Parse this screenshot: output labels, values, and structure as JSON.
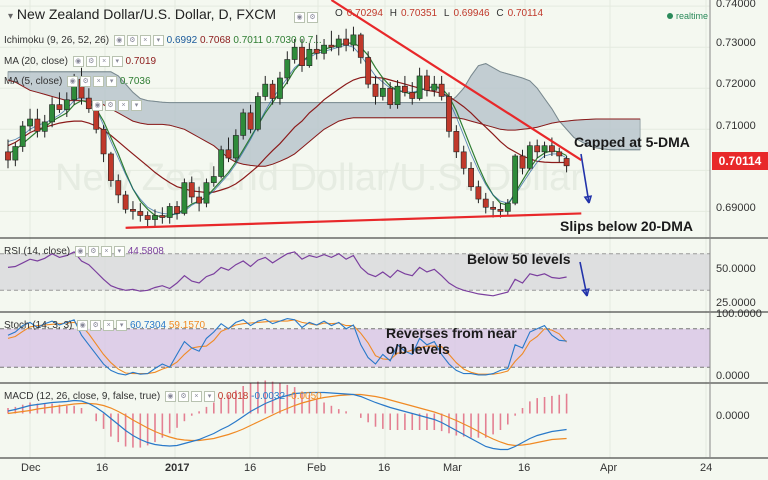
{
  "header": {
    "title": "New Zealand Dollar/U.S. Dollar, D, FXCM",
    "ohlc": {
      "o_label": "O",
      "o": "0.70294",
      "h_label": "H",
      "h": "0.70351",
      "l_label": "L",
      "l": "0.69946",
      "c_label": "C",
      "c": "0.70114"
    },
    "realtime": "realtime"
  },
  "indicators": {
    "ichimoku": {
      "label": "Ichimoku (9, 26, 52, 26)",
      "v1": "0.6992",
      "v2": "0.7068",
      "v3": "0.7011",
      "v4": "0.7030",
      "v5": "0.7..."
    },
    "ma20": {
      "label": "MA (20, close)",
      "value": "0.7019"
    },
    "ma5": {
      "label": "MA (5, close)",
      "value": "0.7036"
    },
    "rsi": {
      "label": "RSI (14, close)",
      "value": "44.5808"
    },
    "stoch": {
      "label": "Stoch (14, 3, 3)",
      "k": "60.7304",
      "d": "59.1570"
    },
    "macd": {
      "label": "MACD (12, 26, close, 9, false, true)",
      "hist": "0.0018",
      "macd": "-0.0032",
      "signal": "-0.0050"
    }
  },
  "price_axis": [
    "0.74000",
    "0.73000",
    "0.72000",
    "0.71000",
    "0.69000"
  ],
  "current_price": "0.70114",
  "rsi_axis": [
    "50.0000",
    "25.0000"
  ],
  "stoch_axis": [
    "100.0000",
    "0.0000"
  ],
  "macd_axis": [
    "0.0000"
  ],
  "dates": [
    "Dec",
    "16",
    "2017",
    "16",
    "Feb",
    "16",
    "Mar",
    "16",
    "Apr",
    "24"
  ],
  "annotations": {
    "capped": "Capped at 5-DMA",
    "slips": "Slips below 20-DMA",
    "below50": "Below 50 levels",
    "reverses1": "Reverses from near",
    "reverses2": "o/b levels"
  },
  "watermark": "New Zealand Dollar/U.S. Dollar",
  "colors": {
    "bull": "#2e8b3a",
    "bear": "#c0392b",
    "trend": "#e8282a",
    "cloud": "#b8c6cc",
    "ma20": "#8b1a1a",
    "ma5": "#2e7d32",
    "rsi": "#7b3f9e",
    "stoch_bg": "#d9c8e6",
    "macd": "#2979c9",
    "signal": "#f08a24",
    "arrow": "#2233aa"
  },
  "chart_data": {
    "type": "candlestick",
    "title": "New Zealand Dollar/U.S. Dollar, D, FXCM",
    "ylim": [
      0.684,
      0.7415
    ],
    "candles": [
      [
        0.7045,
        0.7075,
        0.7005,
        0.7025
      ],
      [
        0.7025,
        0.7068,
        0.701,
        0.7058
      ],
      [
        0.7058,
        0.712,
        0.7045,
        0.7108
      ],
      [
        0.7108,
        0.715,
        0.7095,
        0.7125
      ],
      [
        0.7125,
        0.715,
        0.708,
        0.7095
      ],
      [
        0.7095,
        0.7135,
        0.708,
        0.7118
      ],
      [
        0.7118,
        0.7178,
        0.7105,
        0.716
      ],
      [
        0.716,
        0.719,
        0.714,
        0.7148
      ],
      [
        0.7148,
        0.719,
        0.713,
        0.7172
      ],
      [
        0.7172,
        0.7235,
        0.716,
        0.7222
      ],
      [
        0.7222,
        0.725,
        0.716,
        0.7176
      ],
      [
        0.7176,
        0.72,
        0.714,
        0.715
      ],
      [
        0.715,
        0.716,
        0.709,
        0.71
      ],
      [
        0.71,
        0.711,
        0.702,
        0.704
      ],
      [
        0.704,
        0.7045,
        0.696,
        0.6975
      ],
      [
        0.6975,
        0.699,
        0.692,
        0.694
      ],
      [
        0.694,
        0.695,
        0.6895,
        0.6905
      ],
      [
        0.6905,
        0.6925,
        0.688,
        0.69
      ],
      [
        0.69,
        0.692,
        0.6875,
        0.689
      ],
      [
        0.689,
        0.69,
        0.686,
        0.688
      ],
      [
        0.688,
        0.6905,
        0.686,
        0.689
      ],
      [
        0.689,
        0.691,
        0.687,
        0.6885
      ],
      [
        0.6885,
        0.692,
        0.687,
        0.6912
      ],
      [
        0.6912,
        0.6925,
        0.688,
        0.6895
      ],
      [
        0.6895,
        0.698,
        0.689,
        0.697
      ],
      [
        0.697,
        0.6985,
        0.692,
        0.6935
      ],
      [
        0.6935,
        0.696,
        0.69,
        0.692
      ],
      [
        0.692,
        0.698,
        0.691,
        0.697
      ],
      [
        0.697,
        0.701,
        0.696,
        0.6985
      ],
      [
        0.6985,
        0.706,
        0.698,
        0.705
      ],
      [
        0.705,
        0.708,
        0.702,
        0.703
      ],
      [
        0.703,
        0.71,
        0.702,
        0.7085
      ],
      [
        0.7085,
        0.715,
        0.7075,
        0.714
      ],
      [
        0.714,
        0.716,
        0.709,
        0.71
      ],
      [
        0.71,
        0.719,
        0.7095,
        0.718
      ],
      [
        0.718,
        0.723,
        0.717,
        0.721
      ],
      [
        0.721,
        0.722,
        0.716,
        0.7175
      ],
      [
        0.7175,
        0.724,
        0.716,
        0.7225
      ],
      [
        0.7225,
        0.729,
        0.721,
        0.727
      ],
      [
        0.727,
        0.732,
        0.726,
        0.73
      ],
      [
        0.73,
        0.732,
        0.724,
        0.7255
      ],
      [
        0.7255,
        0.731,
        0.725,
        0.7295
      ],
      [
        0.7295,
        0.733,
        0.727,
        0.7285
      ],
      [
        0.7285,
        0.732,
        0.727,
        0.7305
      ],
      [
        0.7305,
        0.734,
        0.729,
        0.73
      ],
      [
        0.73,
        0.733,
        0.728,
        0.732
      ],
      [
        0.732,
        0.7345,
        0.729,
        0.7305
      ],
      [
        0.7305,
        0.735,
        0.729,
        0.733
      ],
      [
        0.733,
        0.7335,
        0.726,
        0.7275
      ],
      [
        0.7275,
        0.729,
        0.72,
        0.721
      ],
      [
        0.721,
        0.723,
        0.716,
        0.718
      ],
      [
        0.718,
        0.7225,
        0.717,
        0.72
      ],
      [
        0.72,
        0.7215,
        0.715,
        0.716
      ],
      [
        0.716,
        0.722,
        0.715,
        0.7205
      ],
      [
        0.7205,
        0.723,
        0.718,
        0.719
      ],
      [
        0.719,
        0.7215,
        0.716,
        0.7175
      ],
      [
        0.7175,
        0.725,
        0.717,
        0.723
      ],
      [
        0.723,
        0.7245,
        0.718,
        0.7195
      ],
      [
        0.7195,
        0.723,
        0.718,
        0.721
      ],
      [
        0.721,
        0.723,
        0.717,
        0.718
      ],
      [
        0.718,
        0.719,
        0.708,
        0.7095
      ],
      [
        0.7095,
        0.711,
        0.703,
        0.7045
      ],
      [
        0.7045,
        0.706,
        0.699,
        0.7005
      ],
      [
        0.7005,
        0.702,
        0.695,
        0.696
      ],
      [
        0.696,
        0.6975,
        0.692,
        0.693
      ],
      [
        0.693,
        0.6945,
        0.6895,
        0.691
      ],
      [
        0.691,
        0.6925,
        0.6885,
        0.6905
      ],
      [
        0.6905,
        0.692,
        0.6885,
        0.69
      ],
      [
        0.69,
        0.693,
        0.689,
        0.692
      ],
      [
        0.692,
        0.704,
        0.6915,
        0.7035
      ],
      [
        0.7035,
        0.705,
        0.699,
        0.7005
      ],
      [
        0.7005,
        0.707,
        0.7,
        0.706
      ],
      [
        0.706,
        0.7075,
        0.703,
        0.7045
      ],
      [
        0.7045,
        0.707,
        0.703,
        0.706
      ],
      [
        0.706,
        0.708,
        0.7035,
        0.7045
      ],
      [
        0.7045,
        0.7055,
        0.702,
        0.7035
      ],
      [
        0.7029,
        0.7035,
        0.6995,
        0.7011
      ]
    ],
    "ma20": [
      0.706,
      0.7068,
      0.708,
      0.7092,
      0.71,
      0.7105,
      0.711,
      0.7115,
      0.7118,
      0.712,
      0.712,
      0.7115,
      0.7108,
      0.7098,
      0.7085,
      0.707,
      0.7055,
      0.704,
      0.7025,
      0.701,
      0.6995,
      0.6982,
      0.697,
      0.696,
      0.6955,
      0.695,
      0.6948,
      0.6946,
      0.6947,
      0.6952,
      0.6958,
      0.6967,
      0.698,
      0.6995,
      0.701,
      0.703,
      0.7048,
      0.7065,
      0.7085,
      0.7105,
      0.712,
      0.714,
      0.7155,
      0.7172,
      0.7185,
      0.7198,
      0.721,
      0.722,
      0.7226,
      0.7228,
      0.7226,
      0.7225,
      0.722,
      0.7215,
      0.721,
      0.7205,
      0.72,
      0.7195,
      0.7192,
      0.7188,
      0.718,
      0.7168,
      0.7155,
      0.714,
      0.7122,
      0.7105,
      0.7088,
      0.707,
      0.7055,
      0.7045,
      0.7035,
      0.7028,
      0.7022,
      0.702,
      0.7019,
      0.7019,
      0.7019
    ],
    "ma5": [
      0.704,
      0.705,
      0.7065,
      0.708,
      0.7095,
      0.7105,
      0.712,
      0.713,
      0.714,
      0.716,
      0.717,
      0.7165,
      0.715,
      0.712,
      0.708,
      0.704,
      0.6995,
      0.6955,
      0.6925,
      0.6905,
      0.689,
      0.6887,
      0.689,
      0.6895,
      0.6905,
      0.6918,
      0.6925,
      0.6935,
      0.6955,
      0.6975,
      0.6995,
      0.702,
      0.705,
      0.708,
      0.711,
      0.714,
      0.7165,
      0.719,
      0.7215,
      0.7245,
      0.7265,
      0.728,
      0.729,
      0.7295,
      0.73,
      0.7305,
      0.731,
      0.731,
      0.73,
      0.728,
      0.725,
      0.7225,
      0.7205,
      0.7195,
      0.719,
      0.7185,
      0.7195,
      0.72,
      0.7205,
      0.72,
      0.718,
      0.7145,
      0.71,
      0.7055,
      0.701,
      0.697,
      0.694,
      0.692,
      0.6915,
      0.6945,
      0.6975,
      0.7005,
      0.703,
      0.7042,
      0.7048,
      0.7045,
      0.7036
    ],
    "cloud_upper": [
      0.724,
      0.724,
      0.724,
      0.724,
      0.724,
      0.724,
      0.724,
      0.724,
      0.724,
      0.724,
      0.724,
      0.724,
      0.724,
      0.724,
      0.724,
      0.723,
      0.721,
      0.719,
      0.7175,
      0.717,
      0.7168,
      0.7166,
      0.7165,
      0.7165,
      0.7165,
      0.7165,
      0.7165,
      0.7165,
      0.7165,
      0.7165,
      0.7165,
      0.7165,
      0.7165,
      0.7165,
      0.7165,
      0.7165,
      0.7165,
      0.7165,
      0.7165,
      0.7165,
      0.7165,
      0.7165,
      0.7165,
      0.7165,
      0.7165,
      0.7165,
      0.7165,
      0.7165,
      0.7165,
      0.7165,
      0.7165,
      0.7165,
      0.7165,
      0.7165,
      0.7165,
      0.7165,
      0.7165,
      0.7165,
      0.7165,
      0.7165,
      0.7165,
      0.718,
      0.72,
      0.723,
      0.7255,
      0.726,
      0.725,
      0.724,
      0.7235,
      0.723,
      0.7225,
      0.7218,
      0.72,
      0.7175,
      0.715,
      0.712,
      0.71,
      0.708,
      0.707,
      0.706,
      0.7055,
      0.7052,
      0.705,
      0.705,
      0.705,
      0.705,
      0.705
    ],
    "cloud_lower": [
      0.722,
      0.7215,
      0.7205,
      0.7195,
      0.719,
      0.7185,
      0.718,
      0.7175,
      0.717,
      0.717,
      0.717,
      0.7168,
      0.7165,
      0.716,
      0.715,
      0.714,
      0.713,
      0.712,
      0.7115,
      0.7112,
      0.7112,
      0.7112,
      0.711,
      0.7105,
      0.71,
      0.709,
      0.708,
      0.707,
      0.706,
      0.7045,
      0.703,
      0.702,
      0.7015,
      0.7012,
      0.701,
      0.701,
      0.7015,
      0.7022,
      0.703,
      0.704,
      0.7055,
      0.707,
      0.7085,
      0.71,
      0.711,
      0.712,
      0.7125,
      0.7128,
      0.7128,
      0.7128,
      0.7128,
      0.7128,
      0.7128,
      0.7128,
      0.7128,
      0.7128,
      0.7128,
      0.7128,
      0.7128,
      0.7128,
      0.7128,
      0.7128,
      0.7125,
      0.712,
      0.7115,
      0.711,
      0.7105,
      0.71,
      0.7098,
      0.7098,
      0.71,
      0.7102,
      0.7105,
      0.711,
      0.7115,
      0.7118,
      0.712,
      0.7122,
      0.7123,
      0.7124,
      0.7125,
      0.7125,
      0.7125,
      0.7125,
      0.7125,
      0.7125,
      0.7125
    ],
    "tenkan": [
      0.707,
      0.7075,
      0.7085,
      0.71,
      0.711,
      0.7115,
      0.7125,
      0.7135,
      0.715,
      0.717,
      0.718,
      0.717,
      0.715,
      0.711,
      0.707,
      0.703,
      0.699,
      0.6955,
      0.693,
      0.691,
      0.69,
      0.6895,
      0.6893,
      0.6893,
      0.69,
      0.6915,
      0.6925,
      0.6935,
      0.695,
      0.697,
      0.699,
      0.7015,
      0.7045,
      0.7075,
      0.711,
      0.7145,
      0.7175,
      0.72,
      0.7225,
      0.725,
      0.7265,
      0.7275,
      0.7285,
      0.729,
      0.7295,
      0.73,
      0.7305,
      0.73,
      0.728,
      0.7255,
      0.723,
      0.7215,
      0.72,
      0.7195,
      0.7192,
      0.719,
      0.7195,
      0.72,
      0.7205,
      0.7195,
      0.717,
      0.713,
      0.7085,
      0.704,
      0.7,
      0.6965,
      0.694,
      0.6925,
      0.692,
      0.694,
      0.6968,
      0.6995,
      0.702,
      0.7035,
      0.704,
      0.704,
      0.703
    ],
    "trendline_upper": {
      "from_index": 44,
      "from_value": 0.7415,
      "to_index": 78,
      "to_value": 0.7025
    },
    "trendline_lower": {
      "from_index": 16,
      "from_value": 0.686,
      "to_index": 78,
      "to_value": 0.6895
    },
    "rsi": {
      "ylim": [
        15,
        85
      ],
      "levels": [
        70,
        30
      ],
      "values": [
        55,
        56,
        60,
        64,
        62,
        65,
        70,
        66,
        68,
        72,
        62,
        58,
        50,
        42,
        35,
        32,
        30,
        31,
        29,
        30,
        33,
        35,
        32,
        38,
        46,
        40,
        38,
        45,
        48,
        55,
        52,
        58,
        62,
        56,
        63,
        66,
        60,
        65,
        70,
        72,
        64,
        68,
        66,
        69,
        66,
        70,
        64,
        68,
        55,
        48,
        45,
        50,
        44,
        52,
        48,
        46,
        55,
        50,
        53,
        46,
        38,
        33,
        30,
        28,
        26,
        25,
        24,
        26,
        28,
        42,
        38,
        48,
        46,
        48,
        44,
        43,
        44.58
      ]
    },
    "stoch": {
      "ylim": [
        0,
        100
      ],
      "levels": [
        80,
        20
      ],
      "k": [
        70,
        75,
        85,
        90,
        82,
        88,
        92,
        86,
        90,
        94,
        70,
        55,
        40,
        25,
        15,
        10,
        8,
        12,
        9,
        10,
        18,
        25,
        20,
        40,
        60,
        50,
        45,
        65,
        75,
        88,
        80,
        90,
        94,
        85,
        92,
        95,
        88,
        92,
        96,
        94,
        82,
        90,
        86,
        92,
        85,
        90,
        80,
        86,
        55,
        35,
        25,
        40,
        30,
        55,
        45,
        40,
        65,
        55,
        60,
        40,
        25,
        15,
        10,
        10,
        8,
        8,
        10,
        15,
        18,
        55,
        50,
        75,
        80,
        85,
        70,
        62,
        60.73
      ],
      "d": [
        65,
        68,
        76,
        83,
        85,
        86,
        87,
        88,
        89,
        90,
        85,
        72,
        56,
        40,
        27,
        17,
        11,
        10,
        10,
        10,
        12,
        17,
        21,
        28,
        40,
        50,
        52,
        53,
        62,
        76,
        81,
        86,
        88,
        89,
        90,
        91,
        92,
        92,
        92,
        94,
        90,
        88,
        86,
        89,
        88,
        89,
        85,
        85,
        73,
        58,
        38,
        33,
        32,
        42,
        43,
        47,
        50,
        53,
        53,
        52,
        40,
        27,
        17,
        12,
        9,
        9,
        9,
        11,
        14,
        29,
        41,
        60,
        68,
        80,
        78,
        72,
        59.16
      ]
    },
    "macd": {
      "ylim": [
        -0.0085,
        0.0055
      ],
      "macd": [
        0.0005,
        0.0008,
        0.0012,
        0.0016,
        0.0018,
        0.002,
        0.0022,
        0.0023,
        0.0024,
        0.0026,
        0.0025,
        0.002,
        0.0012,
        0.0002,
        -0.001,
        -0.0022,
        -0.0034,
        -0.0044,
        -0.0052,
        -0.0058,
        -0.0062,
        -0.0064,
        -0.0065,
        -0.0064,
        -0.006,
        -0.0056,
        -0.0052,
        -0.0046,
        -0.004,
        -0.0032,
        -0.0025,
        -0.0016,
        -0.0006,
        0.0004,
        0.0012,
        0.002,
        0.0026,
        0.0032,
        0.0036,
        0.004,
        0.0041,
        0.0042,
        0.0042,
        0.0042,
        0.0041,
        0.004,
        0.0039,
        0.0038,
        0.0034,
        0.0028,
        0.0022,
        0.0017,
        0.0012,
        0.0008,
        0.0004,
        0.0,
        -0.0004,
        -0.0008,
        -0.0012,
        -0.0018,
        -0.0026,
        -0.0034,
        -0.0042,
        -0.005,
        -0.0058,
        -0.0066,
        -0.007,
        -0.0072,
        -0.0072,
        -0.0066,
        -0.0058,
        -0.005,
        -0.0044,
        -0.004,
        -0.0036,
        -0.0034,
        -0.0032
      ],
      "signal": [
        0.0,
        0.0002,
        0.0004,
        0.0006,
        0.0009,
        0.0011,
        0.0013,
        0.0015,
        0.0017,
        0.0019,
        0.002,
        0.002,
        0.0019,
        0.0016,
        0.0011,
        0.0004,
        -0.0004,
        -0.0013,
        -0.0021,
        -0.0029,
        -0.0036,
        -0.0042,
        -0.0047,
        -0.0051,
        -0.0053,
        -0.0054,
        -0.0054,
        -0.0052,
        -0.005,
        -0.0046,
        -0.0042,
        -0.0037,
        -0.0031,
        -0.0024,
        -0.0017,
        -0.001,
        -0.0003,
        0.0004,
        0.001,
        0.0016,
        0.0021,
        0.0025,
        0.0029,
        0.0032,
        0.0034,
        0.0036,
        0.0037,
        0.0038,
        0.0038,
        0.0036,
        0.0034,
        0.0031,
        0.0027,
        0.0023,
        0.0019,
        0.0015,
        0.0011,
        0.0007,
        0.0003,
        -0.0002,
        -0.0008,
        -0.0014,
        -0.0021,
        -0.0028,
        -0.0036,
        -0.0044,
        -0.0051,
        -0.0057,
        -0.0062,
        -0.0064,
        -0.0063,
        -0.0061,
        -0.0058,
        -0.0055,
        -0.0052,
        -0.0051,
        -0.005
      ]
    }
  }
}
